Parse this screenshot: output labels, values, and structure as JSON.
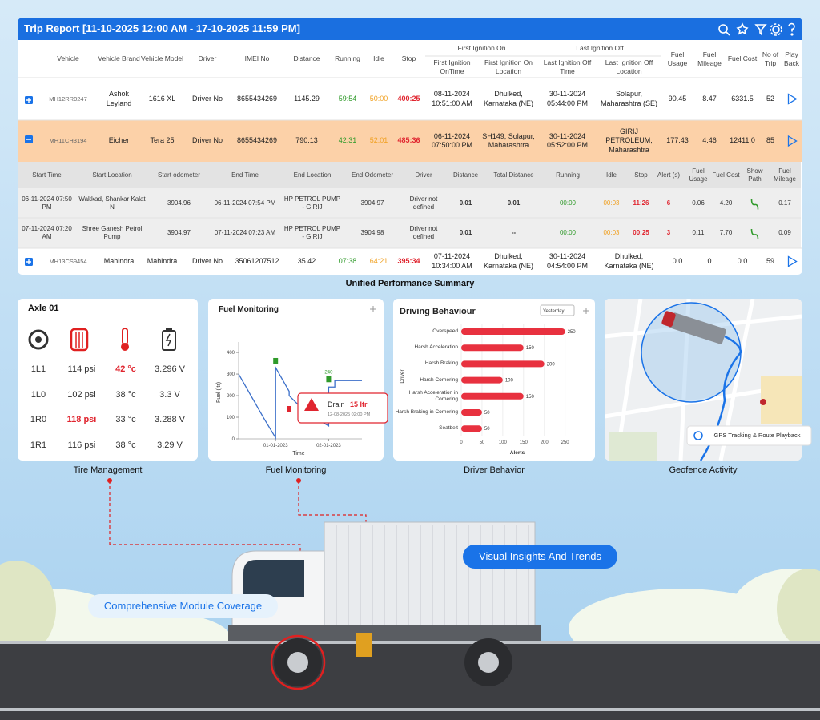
{
  "header": {
    "title": "Trip Report [11-10-2025 12:00 AM - 17-10-2025 11:59 PM]"
  },
  "trip_table": {
    "group_headers": [
      "First Ignition On",
      "Last Ignition Off"
    ],
    "columns": [
      "Vehicle",
      "Vehicle Brand",
      "Vehicle Model",
      "Driver",
      "IMEI No",
      "Distance",
      "Running",
      "Idle",
      "Stop",
      "First Ignition OnTime",
      "First Ignition On Location",
      "Last Ignition Off Time",
      "Last Ignition Off Location",
      "Fuel Usage",
      "Fuel Mileage",
      "Fuel Cost",
      "No of Trip",
      "Play Back"
    ],
    "rows": [
      [
        "MH12RR0247",
        "Ashok Leyland",
        "1616 XL",
        "Driver No",
        "8655434269",
        "1145.29",
        "59:54",
        "50:00",
        "400:25",
        "08-11-2024 10:51:00 AM",
        "Dhulked, Karnataka (NE)",
        "30-11-2024 05:44:00 PM",
        "Solapur, Maharashtra (SE)",
        "90.45",
        "8.47",
        "6331.5",
        "52"
      ],
      [
        "MH11CH3194",
        "Eicher",
        "Tera 25",
        "Driver No",
        "8655434269",
        "790.13",
        "42:31",
        "52:01",
        "485:36",
        "06-11-2024 07:50:00 PM",
        "SH149, Solapur, Maharashtra",
        "30-11-2024 05:52:00 PM",
        "GIRIJ PETROLEUM, Maharashtra",
        "177.43",
        "4.46",
        "12411.0",
        "85"
      ],
      [
        "MH13CS9454",
        "Mahindra",
        "Mahindra",
        "Driver No",
        "35061207512",
        "35.42",
        "07:38",
        "64:21",
        "395:34",
        "07-11-2024 10:34:00 AM",
        "Dhulked, Karnataka (NE)",
        "30-11-2024 04:54:00 PM",
        "Dhulked, Karnataka (NE)",
        "0.0",
        "0",
        "0.0",
        "59"
      ]
    ],
    "details": {
      "columns": [
        "Start Time",
        "Start Location",
        "Start odometer",
        "End Time",
        "End Location",
        "End Odometer",
        "Driver",
        "Distance",
        "Total Distance",
        "Running",
        "Idle",
        "Stop",
        "Alert (s)",
        "Fuel Usage",
        "Fuel Cost",
        "Show Path",
        "Fuel Mileage"
      ],
      "rows": [
        [
          "06-11-2024 07:50 PM",
          "Wakkad, Shankar Kalat N",
          "3904.96",
          "06-11-2024 07:54 PM",
          "HP PETROL PUMP - GIRIJ",
          "3904.97",
          "Driver not defined",
          "0.01",
          "0.01",
          "00:00",
          "00:03",
          "11:26",
          "6",
          "0.06",
          "4.20",
          "0.17"
        ],
        [
          "07-11-2024 07:20 AM",
          "Shree Ganesh Petrol Pump",
          "3904.97",
          "07-11-2024 07:23 AM",
          "HP PETROL PUMP - GIRIJ",
          "3904.98",
          "Driver not defined",
          "0.01",
          "--",
          "00:00",
          "00:03",
          "00:25",
          "3",
          "0.11",
          "7.70",
          "0.09"
        ]
      ]
    }
  },
  "summary_caption": "Unified Performance Summary",
  "tire_card": {
    "title": "Axle 01",
    "rows": [
      [
        "1L1",
        "114 psi",
        "42 °c",
        "3.296 V"
      ],
      [
        "1L0",
        "102 psi",
        "38 °c",
        "3.3 V"
      ],
      [
        "1R0",
        "118 psi",
        "33 °c",
        "3.288 V"
      ],
      [
        "1R1",
        "116 psi",
        "38 °c",
        "3.29 V"
      ]
    ]
  },
  "chart_data": [
    {
      "type": "line",
      "title": "Fuel Monitoring",
      "x_label": "Time",
      "y_label": "Fuel (ltr)",
      "x": [
        0,
        10,
        20,
        30,
        30,
        41,
        41,
        55,
        73,
        73,
        78,
        78,
        100
      ],
      "values": [
        300,
        200,
        100,
        5,
        330,
        220,
        200,
        120,
        60,
        240,
        240,
        270,
        270
      ],
      "color": "#3b6fc9",
      "xlim": [
        0,
        100
      ],
      "ylim": [
        0,
        430
      ],
      "yticks": [
        0,
        100,
        200,
        300,
        400
      ],
      "xticks": [
        {
          "value": 30,
          "label": "01-01-2023"
        },
        {
          "value": 73,
          "label": "02-01-2023"
        }
      ],
      "annotations": [
        "240",
        "Drain",
        "15 ltr",
        "12-08-2025 02:00 PM"
      ]
    },
    {
      "type": "bar",
      "orientation": "horizontal",
      "title": "Driving Behaviour",
      "filter": "Yesterday",
      "x_label": "Alerts",
      "y_label": "Driver",
      "categories": [
        "Overspeed",
        "Harsh Acceleration",
        "Harsh Braking",
        "Harsh Cornering",
        "Harsh Acceleration in Cornering",
        "Harsh Braking in Cornering",
        "Seatbelt"
      ],
      "values": [
        250,
        150,
        200,
        100,
        150,
        50,
        50
      ],
      "color": "#e8313f",
      "xlim": [
        0,
        270
      ],
      "xticks": [
        0,
        50,
        100,
        150,
        200,
        250
      ]
    }
  ],
  "geofence": {
    "badge": "GPS Tracking & Route Playback"
  },
  "captions": [
    "Tire Management",
    "Fuel Monitoring",
    "Driver Behavior",
    "Geofence Activity"
  ],
  "banners": [
    "Visual Insights And Trends",
    "Comprehensive Module Coverage"
  ]
}
